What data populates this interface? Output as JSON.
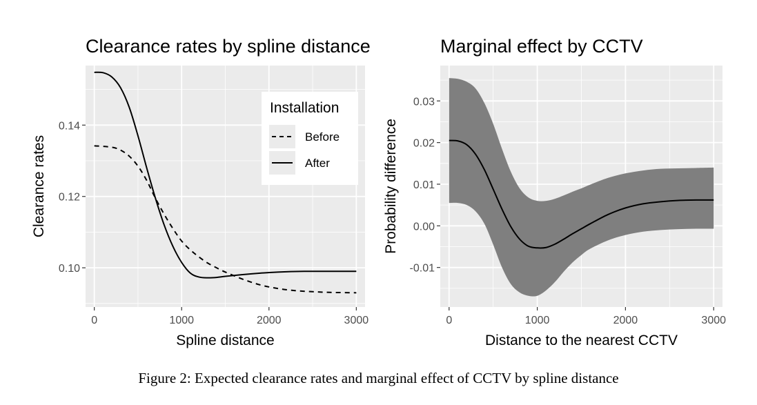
{
  "caption": "Figure 2: Expected clearance rates and marginal effect of CCTV by spline distance",
  "chart_data": [
    {
      "type": "line",
      "title": "Clearance rates by spline distance",
      "xlabel": "Spline distance",
      "ylabel": "Clearance rates",
      "xlim": [
        -100,
        3100
      ],
      "ylim": [
        0.089,
        0.1567
      ],
      "xticks": [
        0,
        1000,
        2000,
        3000
      ],
      "xtick_labels": [
        "0",
        "1000",
        "2000",
        "3000"
      ],
      "yticks": [
        0.1,
        0.12,
        0.14
      ],
      "ytick_labels": [
        "0.10",
        "0.12",
        "0.14"
      ],
      "grid": true,
      "legend": {
        "title": "Installation",
        "position": "top-right"
      },
      "series": [
        {
          "name": "Before",
          "style": "dashed",
          "x": [
            0,
            200,
            300,
            400,
            500,
            600,
            700,
            800,
            900,
            1000,
            1100,
            1200,
            1300,
            1400,
            1500,
            1700,
            1900,
            2100,
            2300,
            2500,
            2700,
            3000
          ],
          "y": [
            0.1342,
            0.1338,
            0.133,
            0.1313,
            0.1285,
            0.1245,
            0.1195,
            0.115,
            0.111,
            0.1075,
            0.105,
            0.103,
            0.1013,
            0.1,
            0.0988,
            0.0968,
            0.0952,
            0.0942,
            0.0936,
            0.0933,
            0.0931,
            0.093
          ]
        },
        {
          "name": "After",
          "style": "solid",
          "x": [
            0,
            100,
            200,
            300,
            400,
            500,
            600,
            700,
            800,
            900,
            1000,
            1100,
            1200,
            1300,
            1400,
            1500,
            1700,
            1900,
            2100,
            2400,
            2700,
            3000
          ],
          "y": [
            0.1548,
            0.1547,
            0.1535,
            0.1505,
            0.145,
            0.137,
            0.128,
            0.1195,
            0.112,
            0.106,
            0.1015,
            0.0985,
            0.0974,
            0.0972,
            0.0973,
            0.0976,
            0.0981,
            0.0985,
            0.0988,
            0.099,
            0.099,
            0.099
          ]
        }
      ]
    },
    {
      "type": "area",
      "title": "Marginal effect by CCTV",
      "xlabel": "Distance to the nearest CCTV",
      "ylabel": "Probability difference",
      "xlim": [
        -100,
        3100
      ],
      "ylim": [
        -0.0195,
        0.0385
      ],
      "xticks": [
        0,
        1000,
        2000,
        3000
      ],
      "xtick_labels": [
        "0",
        "1000",
        "2000",
        "3000"
      ],
      "yticks": [
        -0.01,
        0.0,
        0.01,
        0.02,
        0.03
      ],
      "ytick_labels": [
        "-0.01",
        "0.00",
        "0.01",
        "0.02",
        "0.03"
      ],
      "grid": true,
      "x": [
        0,
        100,
        200,
        300,
        400,
        500,
        600,
        700,
        800,
        900,
        1000,
        1100,
        1200,
        1300,
        1400,
        1500,
        1600,
        1800,
        2000,
        2200,
        2400,
        2600,
        2800,
        3000
      ],
      "estimate": [
        0.0205,
        0.0204,
        0.0195,
        0.0172,
        0.0135,
        0.0088,
        0.004,
        -0.0002,
        -0.0032,
        -0.0049,
        -0.0053,
        -0.0052,
        -0.0044,
        -0.0032,
        -0.0019,
        -0.0007,
        0.0005,
        0.0027,
        0.0043,
        0.0053,
        0.0058,
        0.0061,
        0.0062,
        0.0062
      ],
      "upper": [
        0.0355,
        0.0353,
        0.0346,
        0.033,
        0.0295,
        0.0245,
        0.0185,
        0.013,
        0.009,
        0.0068,
        0.006,
        0.006,
        0.0065,
        0.0073,
        0.0082,
        0.009,
        0.0099,
        0.0115,
        0.0126,
        0.0133,
        0.0137,
        0.0138,
        0.0139,
        0.014
      ],
      "lower": [
        0.0055,
        0.0055,
        0.005,
        0.0035,
        0.0005,
        -0.0045,
        -0.01,
        -0.014,
        -0.016,
        -0.0168,
        -0.0168,
        -0.0155,
        -0.0135,
        -0.011,
        -0.0088,
        -0.007,
        -0.0055,
        -0.0035,
        -0.0022,
        -0.0014,
        -0.001,
        -0.0008,
        -0.0007,
        -0.0007
      ]
    }
  ]
}
